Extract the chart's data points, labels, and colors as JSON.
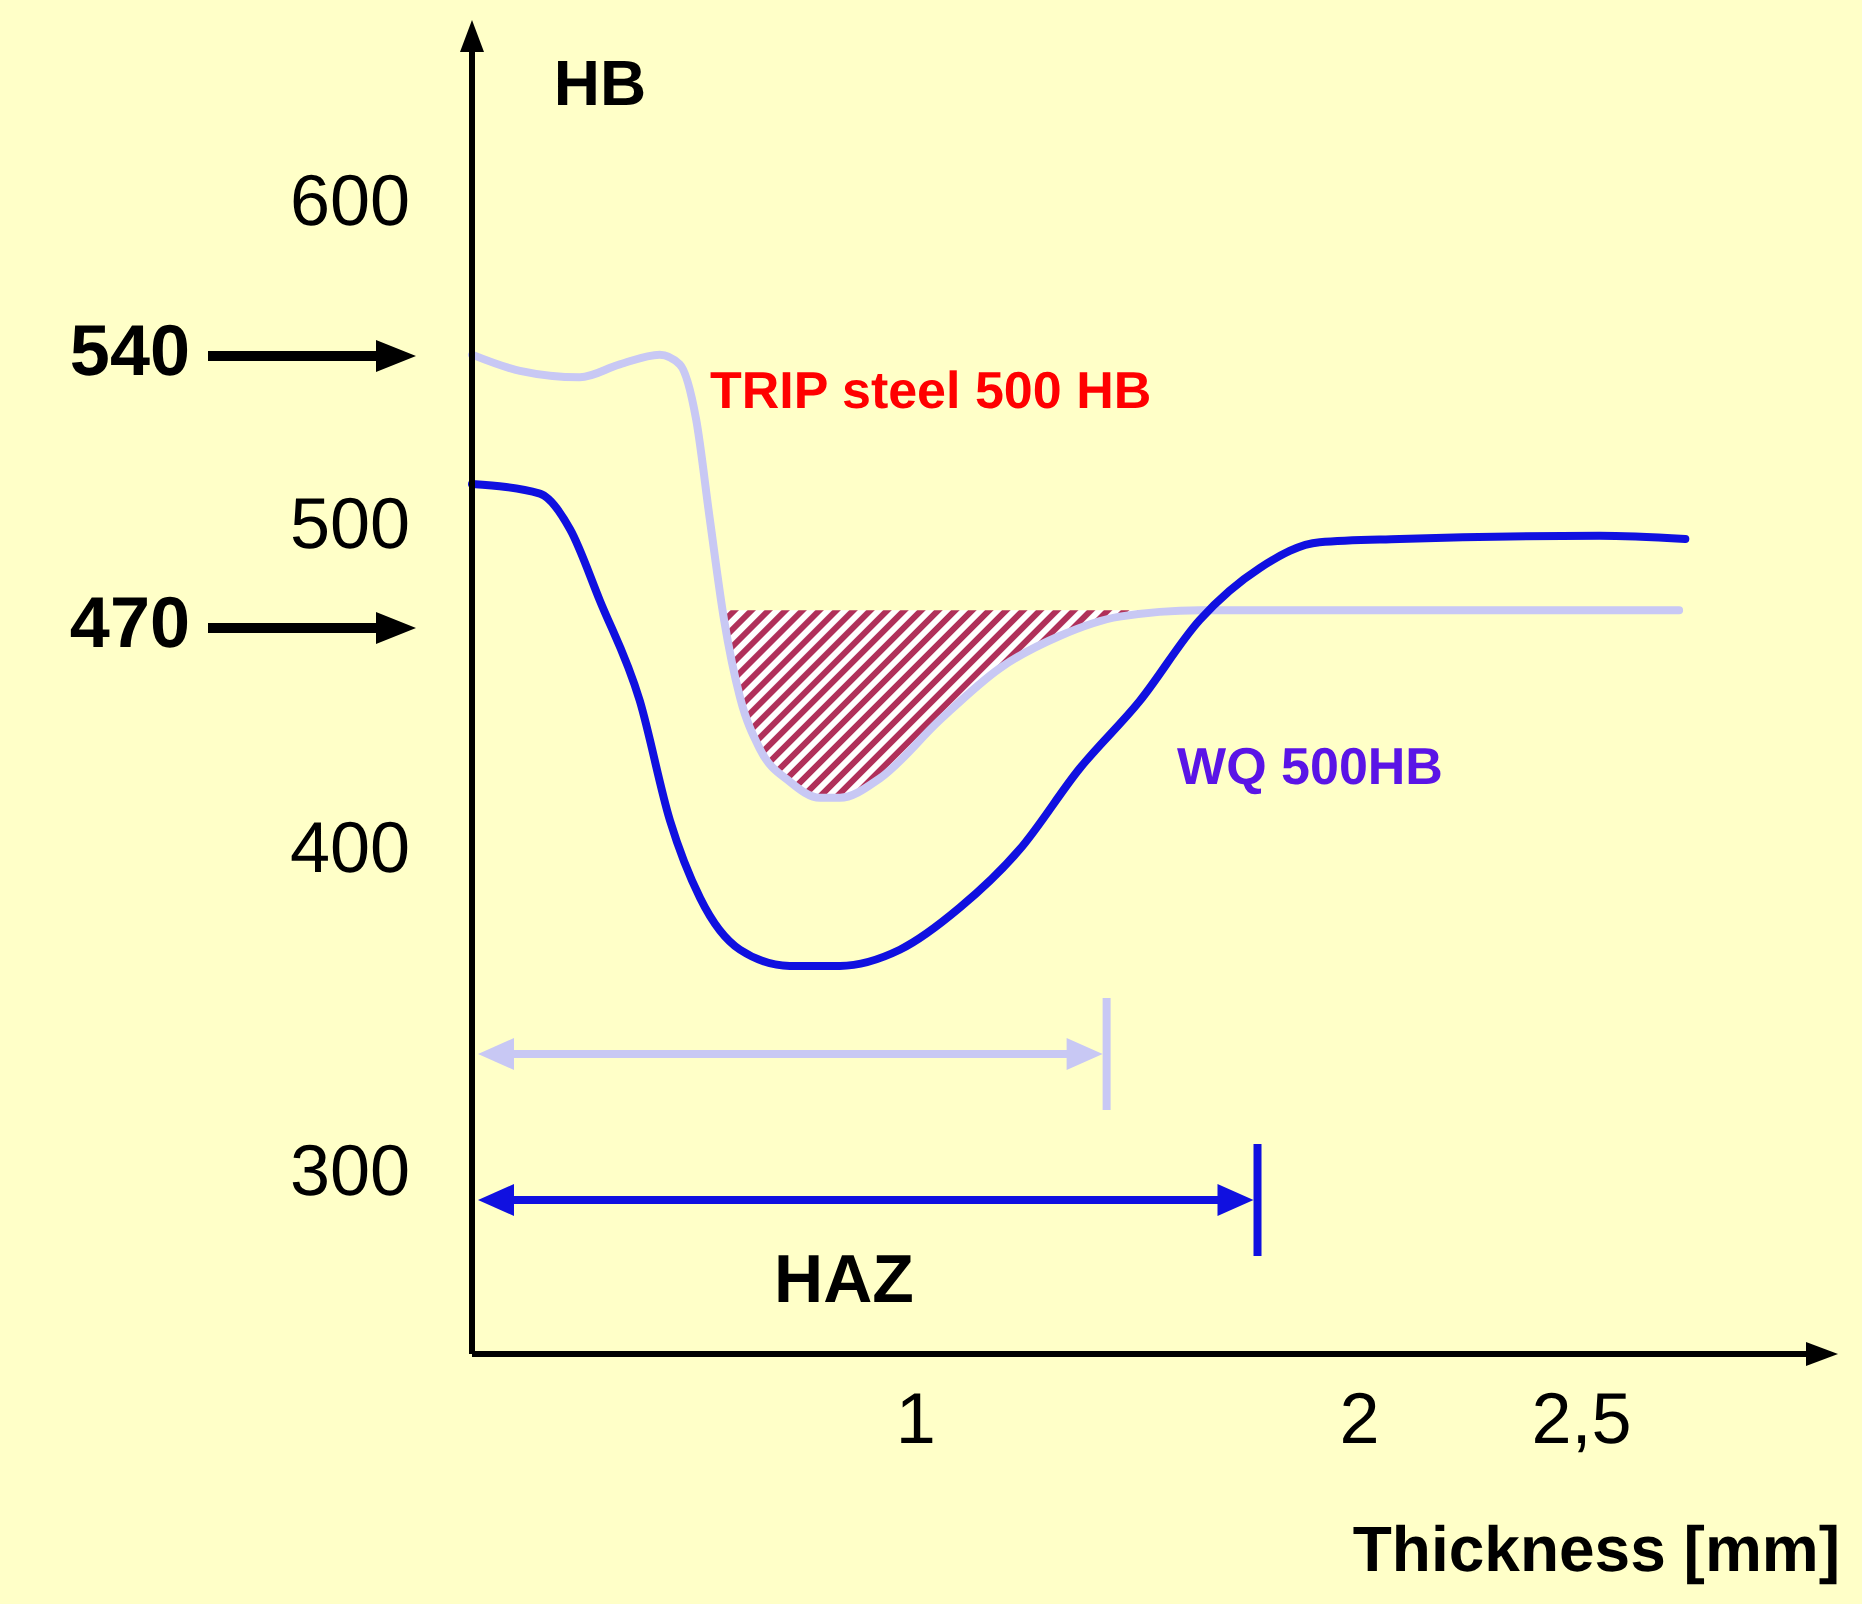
{
  "chart_data": {
    "type": "line",
    "xlabel": "Thickness [mm]",
    "ylabel": "HB",
    "xlim": [
      0,
      3.06
    ],
    "ylim": [
      245,
      655
    ],
    "xticks": [
      1,
      2,
      {
        "value": 2.5,
        "label": "2,5"
      }
    ],
    "yticks": [
      300,
      400,
      500,
      600
    ],
    "grid": false,
    "legend": false,
    "marker": "none",
    "line_style": "solid",
    "series": [
      {
        "name": "TRIP steel 500 HB",
        "color": "#c8c8f4",
        "x": [
          0,
          0.108,
          0.243,
          0.333,
          0.423,
          0.468,
          0.505,
          0.536,
          0.568,
          0.604,
          0.649,
          0.716,
          0.784,
          0.829,
          0.919,
          1.054,
          1.189,
          1.324,
          1.459,
          1.64,
          2.09,
          2.72
        ],
        "values": [
          554,
          549,
          547,
          551,
          554,
          551,
          534,
          503,
          472,
          448,
          432,
          422,
          417,
          417,
          423,
          441,
          457,
          467,
          473,
          475,
          475,
          475
        ]
      },
      {
        "name": "WQ 500HB",
        "color": "#1010e0",
        "x": [
          0,
          0.153,
          0.221,
          0.288,
          0.378,
          0.446,
          0.514,
          0.604,
          0.716,
          0.829,
          0.964,
          1.099,
          1.234,
          1.369,
          1.505,
          1.64,
          1.775,
          1.91,
          2.09,
          2.541,
          2.734
        ],
        "values": [
          514,
          511,
          500,
          478,
          447,
          410,
          386,
          370,
          365,
          365,
          370,
          383,
          401,
          426,
          447,
          472,
          488,
          496,
          497,
          498,
          497
        ]
      }
    ],
    "ref_lines": [
      {
        "axis": "x",
        "value": 1.43,
        "color": "#c8c8f4"
      },
      {
        "axis": "x",
        "value": 1.77,
        "color": "#1010e0"
      }
    ],
    "annotations": [
      "540",
      "470",
      "HAZ"
    ]
  }
}
